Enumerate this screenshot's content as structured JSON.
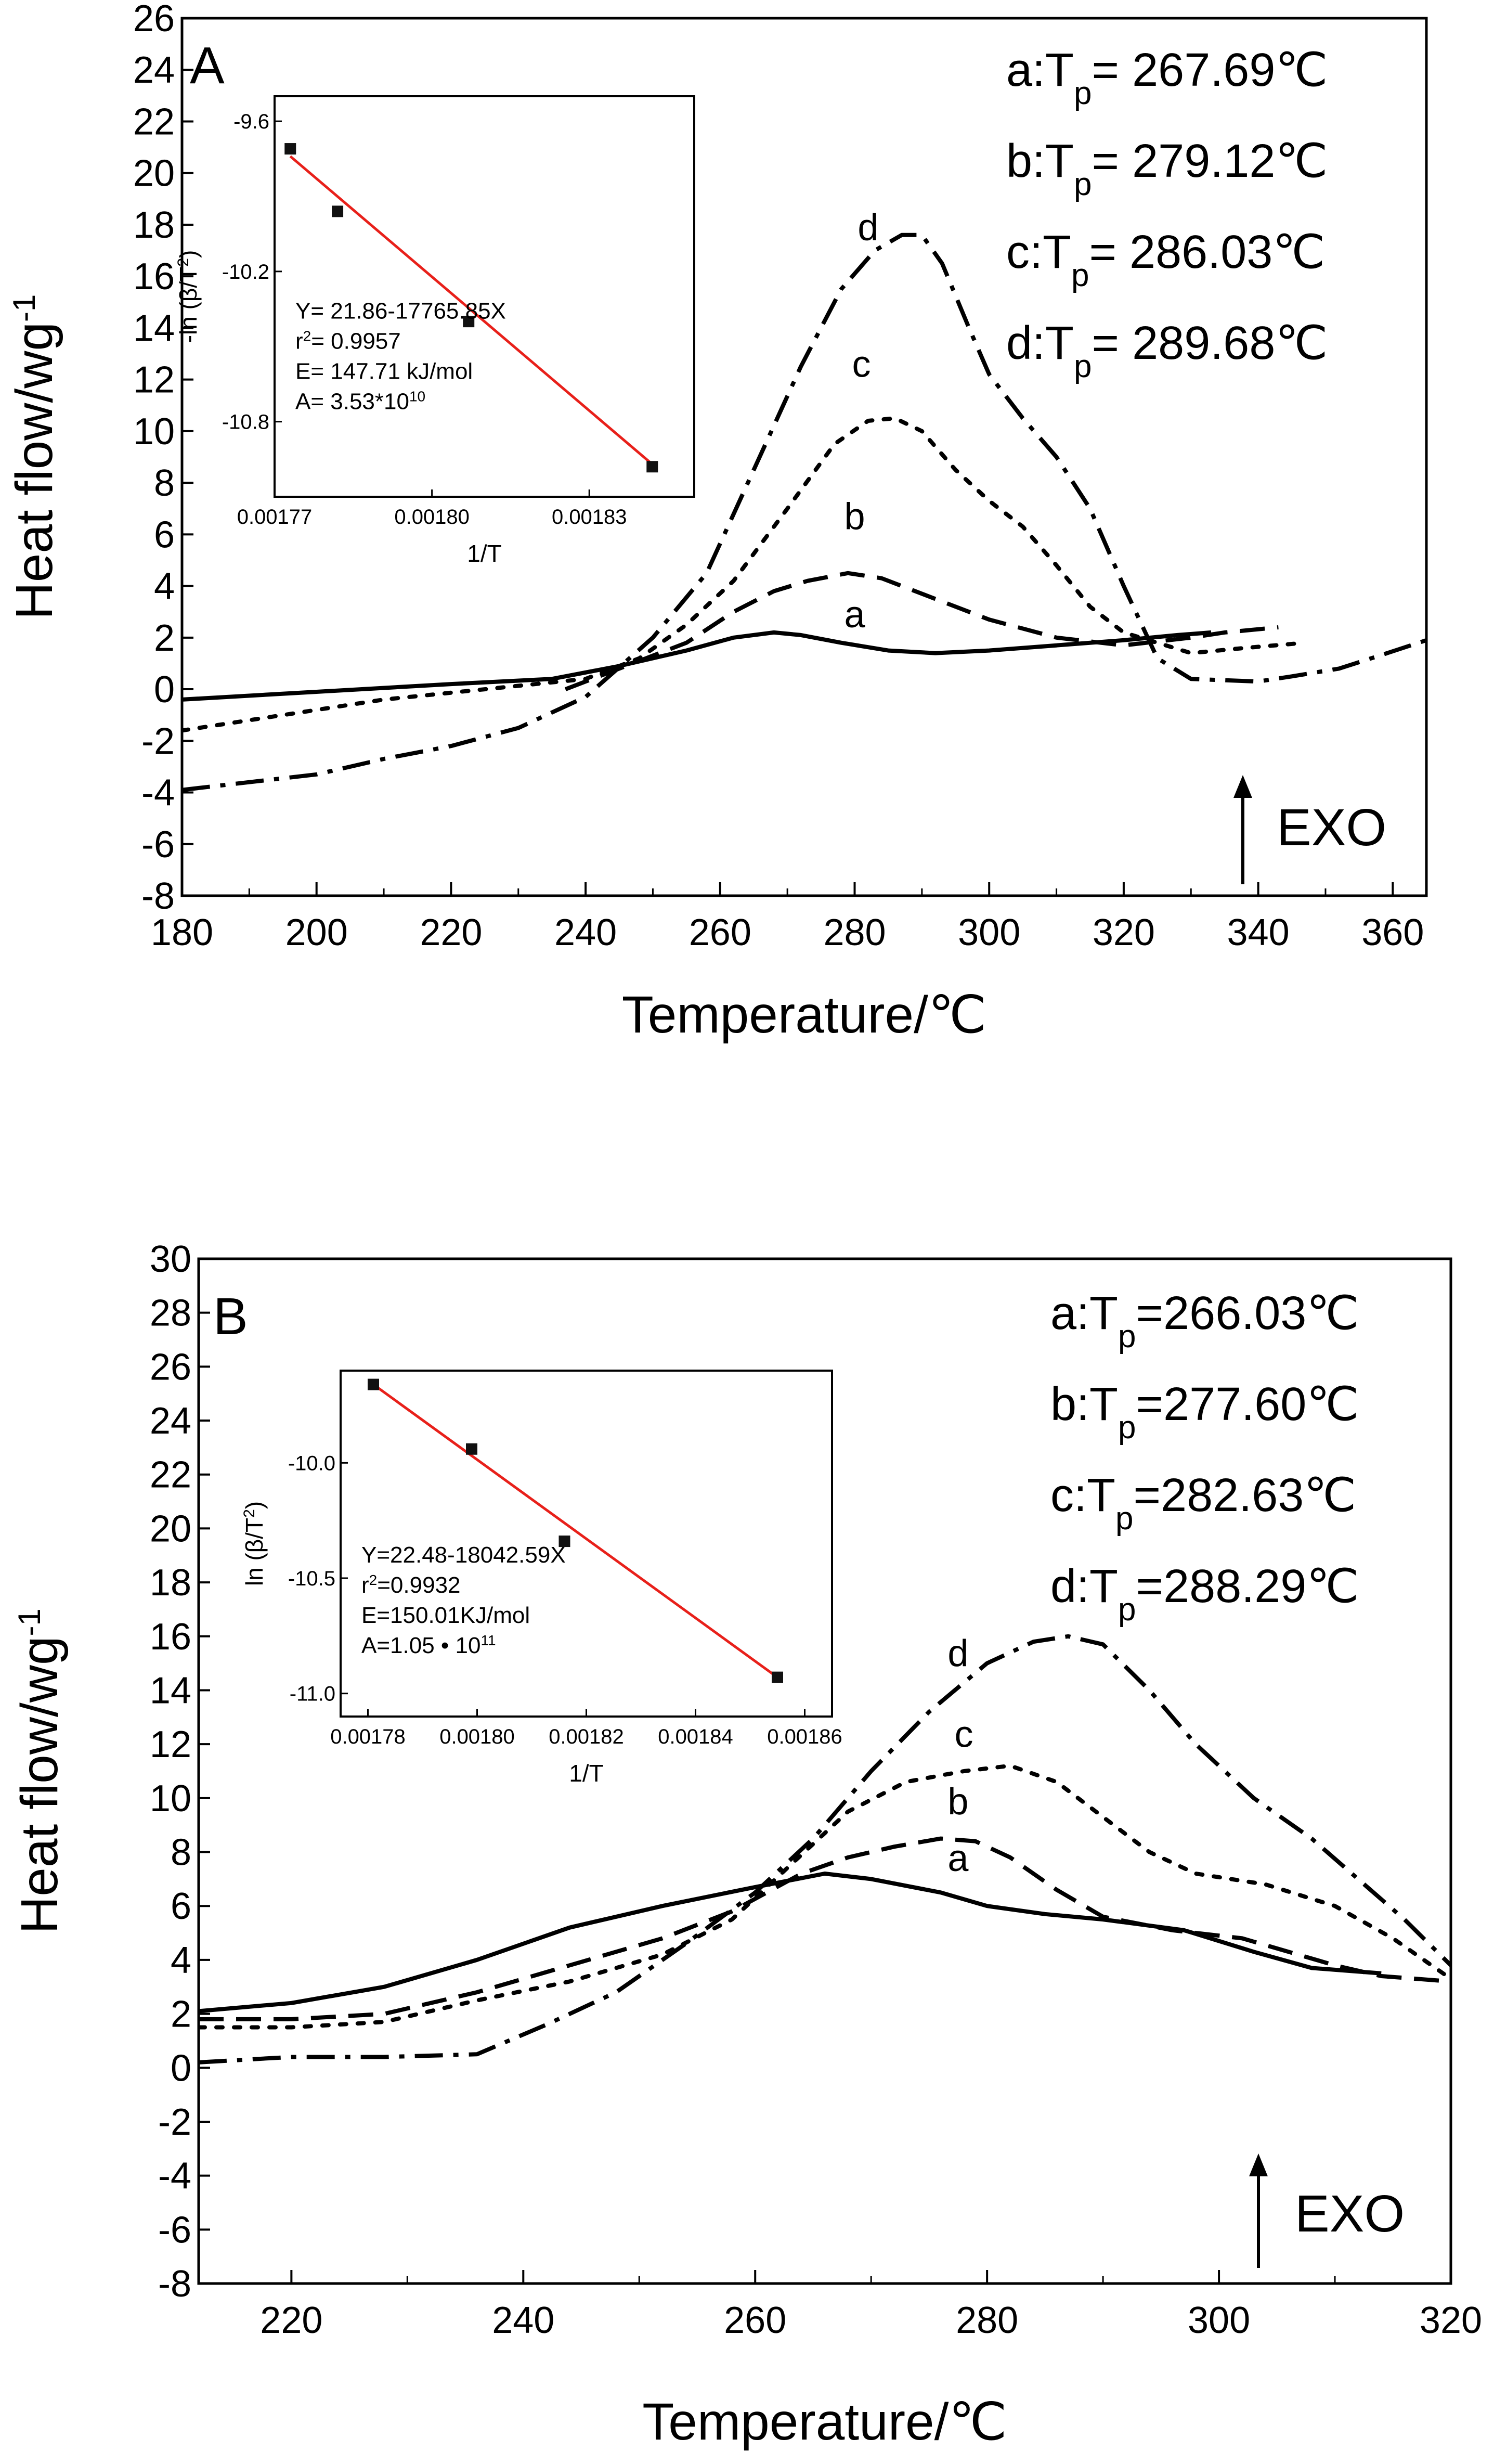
{
  "chart_data": [
    {
      "panel": "A",
      "type": "line",
      "xlabel": "Temperature/℃",
      "ylabel": "Heat flow/wg",
      "ylabel_sup": "-1",
      "xlim": [
        180,
        365
      ],
      "ylim": [
        -8,
        26
      ],
      "x_ticks": [
        "180",
        "200",
        "220",
        "240",
        "260",
        "280",
        "300",
        "320",
        "340",
        "360"
      ],
      "y_ticks": [
        "26",
        "24",
        "22",
        "20",
        "18",
        "16",
        "14",
        "12",
        "10",
        "8",
        "6",
        "4",
        "2",
        "0",
        "-2",
        "-4",
        "-6",
        "-8"
      ],
      "exo_label": "EXO",
      "peak_annotations": [
        {
          "key": "a",
          "prefix": "a:T",
          "sub": "p",
          "value": "= 267.69℃"
        },
        {
          "key": "b",
          "prefix": "b:T",
          "sub": "p",
          "value": "= 279.12℃"
        },
        {
          "key": "c",
          "prefix": "c:T",
          "sub": "p",
          "value": "= 286.03℃"
        },
        {
          "key": "d",
          "prefix": "d:T",
          "sub": "p",
          "value": "= 289.68℃"
        }
      ],
      "series": [
        {
          "name": "a",
          "style": "solid",
          "label_at": [
            280,
            2.4
          ],
          "points": [
            [
              180,
              -0.4
            ],
            [
              200,
              -0.1
            ],
            [
              220,
              0.2
            ],
            [
              235,
              0.4
            ],
            [
              245,
              0.9
            ],
            [
              255,
              1.5
            ],
            [
              262,
              2.0
            ],
            [
              268,
              2.2
            ],
            [
              272,
              2.1
            ],
            [
              278,
              1.8
            ],
            [
              285,
              1.5
            ],
            [
              292,
              1.4
            ],
            [
              300,
              1.5
            ],
            [
              310,
              1.7
            ],
            [
              320,
              1.9
            ],
            [
              328,
              2.1
            ],
            [
              333,
              2.2
            ]
          ]
        },
        {
          "name": "b",
          "style": "dashed",
          "label_at": [
            280,
            6.2
          ],
          "points": [
            [
              237,
              0.0
            ],
            [
              245,
              0.8
            ],
            [
              255,
              1.8
            ],
            [
              262,
              3.0
            ],
            [
              268,
              3.8
            ],
            [
              273,
              4.2
            ],
            [
              279,
              4.5
            ],
            [
              284,
              4.3
            ],
            [
              290,
              3.7
            ],
            [
              300,
              2.7
            ],
            [
              310,
              2.0
            ],
            [
              320,
              1.7
            ],
            [
              330,
              2.0
            ],
            [
              335,
              2.2
            ],
            [
              343,
              2.4
            ]
          ]
        },
        {
          "name": "c",
          "style": "dotted",
          "label_at": [
            281,
            12.1
          ],
          "points": [
            [
              180,
              -1.6
            ],
            [
              195,
              -1.0
            ],
            [
              210,
              -0.4
            ],
            [
              225,
              0.0
            ],
            [
              240,
              0.4
            ],
            [
              248,
              1.2
            ],
            [
              255,
              2.5
            ],
            [
              262,
              4.2
            ],
            [
              270,
              7.0
            ],
            [
              277,
              9.5
            ],
            [
              282,
              10.4
            ],
            [
              286,
              10.5
            ],
            [
              290,
              10.0
            ],
            [
              295,
              8.5
            ],
            [
              300,
              7.3
            ],
            [
              305,
              6.3
            ],
            [
              310,
              4.8
            ],
            [
              315,
              3.2
            ],
            [
              320,
              2.2
            ],
            [
              325,
              1.8
            ],
            [
              330,
              1.4
            ],
            [
              338,
              1.6
            ],
            [
              347,
              1.8
            ]
          ]
        },
        {
          "name": "d",
          "style": "dashdot",
          "label_at": [
            282,
            17.4
          ],
          "points": [
            [
              180,
              -3.9
            ],
            [
              190,
              -3.6
            ],
            [
              200,
              -3.3
            ],
            [
              210,
              -2.7
            ],
            [
              220,
              -2.2
            ],
            [
              230,
              -1.5
            ],
            [
              240,
              -0.3
            ],
            [
              250,
              2.0
            ],
            [
              258,
              4.5
            ],
            [
              265,
              8.5
            ],
            [
              272,
              12.5
            ],
            [
              278,
              15.5
            ],
            [
              283,
              17.0
            ],
            [
              287,
              17.6
            ],
            [
              290,
              17.6
            ],
            [
              293,
              16.5
            ],
            [
              297,
              14.0
            ],
            [
              300,
              12.2
            ],
            [
              305,
              10.5
            ],
            [
              310,
              9.0
            ],
            [
              315,
              7.0
            ],
            [
              320,
              4.0
            ],
            [
              325,
              1.2
            ],
            [
              330,
              0.4
            ],
            [
              340,
              0.3
            ],
            [
              345,
              0.5
            ],
            [
              352,
              0.8
            ],
            [
              358,
              1.3
            ],
            [
              365,
              1.9
            ]
          ]
        }
      ],
      "inset": {
        "type": "scatter",
        "xlabel": "1/T",
        "ylabel": "-ln (β/T",
        "ylabel_sup": "2",
        "ylabel_end": ")",
        "xlim": [
          0.00177,
          0.00185
        ],
        "ylim": [
          -11.1,
          -9.5
        ],
        "x_ticks": [
          "0.00177",
          "0.00180",
          "0.00183"
        ],
        "y_ticks": [
          "-9.6",
          "-10.2",
          "-10.8"
        ],
        "points": [
          [
            0.001773,
            -9.71
          ],
          [
            0.001782,
            -9.96
          ],
          [
            0.001807,
            -10.4
          ],
          [
            0.001842,
            -10.98
          ]
        ],
        "fit": {
          "x0": 0.001773,
          "y0": -9.74,
          "x1": 0.001842,
          "y1": -10.97,
          "color": "#e8201a"
        },
        "equation": "Y= 21.86-17765.85X",
        "r2_prefix": "r",
        "r2_sup": "2",
        "r2_value": "= 0.9957",
        "energy": "E= 147.71 kJ/mol",
        "prefactor": "A= 3.53*10",
        "prefactor_exp": "10"
      }
    },
    {
      "panel": "B",
      "type": "line",
      "xlabel": "Temperature/℃",
      "ylabel": "Heat flow/wg",
      "ylabel_sup": "-1",
      "xlim": [
        212,
        320
      ],
      "ylim": [
        -8,
        30
      ],
      "x_ticks": [
        "220",
        "240",
        "260",
        "280",
        "300",
        "320"
      ],
      "y_ticks": [
        "30",
        "28",
        "26",
        "24",
        "22",
        "20",
        "18",
        "16",
        "14",
        "12",
        "10",
        "8",
        "6",
        "4",
        "2",
        "0",
        "-2",
        "-4",
        "-6",
        "-8"
      ],
      "exo_label": "EXO",
      "peak_annotations": [
        {
          "key": "a",
          "prefix": "a:T",
          "sub": "p",
          "value": "=266.03℃"
        },
        {
          "key": "b",
          "prefix": "b:T",
          "sub": "p",
          "value": "=277.60℃"
        },
        {
          "key": "c",
          "prefix": "c:T",
          "sub": "p",
          "value": "=282.63℃"
        },
        {
          "key": "d",
          "prefix": "d:T",
          "sub": "p",
          "value": "=288.29℃"
        }
      ],
      "series": [
        {
          "name": "a",
          "style": "solid",
          "label_at": [
            277.5,
            7.3
          ],
          "points": [
            [
              212,
              2.1
            ],
            [
              220,
              2.4
            ],
            [
              228,
              3.0
            ],
            [
              236,
              4.0
            ],
            [
              244,
              5.2
            ],
            [
              252,
              6.0
            ],
            [
              260,
              6.7
            ],
            [
              266,
              7.2
            ],
            [
              270,
              7.0
            ],
            [
              276,
              6.5
            ],
            [
              280,
              6.0
            ],
            [
              285,
              5.7
            ],
            [
              290,
              5.5
            ],
            [
              297,
              5.1
            ],
            [
              303,
              4.3
            ],
            [
              308,
              3.7
            ],
            [
              314,
              3.5
            ]
          ]
        },
        {
          "name": "b",
          "style": "dashed",
          "label_at": [
            277.5,
            9.4
          ],
          "points": [
            [
              212,
              1.8
            ],
            [
              220,
              1.8
            ],
            [
              228,
              2.0
            ],
            [
              236,
              2.8
            ],
            [
              244,
              3.8
            ],
            [
              252,
              4.8
            ],
            [
              258,
              5.8
            ],
            [
              264,
              7.2
            ],
            [
              268,
              7.8
            ],
            [
              272,
              8.2
            ],
            [
              276,
              8.5
            ],
            [
              279,
              8.4
            ],
            [
              282,
              7.8
            ],
            [
              286,
              6.6
            ],
            [
              290,
              5.6
            ],
            [
              296,
              5.1
            ],
            [
              302,
              4.8
            ],
            [
              306,
              4.3
            ],
            [
              310,
              3.8
            ],
            [
              314,
              3.4
            ],
            [
              320,
              3.2
            ]
          ]
        },
        {
          "name": "c",
          "style": "dotted",
          "label_at": [
            278,
            11.9
          ],
          "points": [
            [
              212,
              1.5
            ],
            [
              220,
              1.5
            ],
            [
              228,
              1.7
            ],
            [
              236,
              2.5
            ],
            [
              244,
              3.2
            ],
            [
              252,
              4.2
            ],
            [
              258,
              5.5
            ],
            [
              263,
              7.5
            ],
            [
              268,
              9.5
            ],
            [
              273,
              10.6
            ],
            [
              278,
              11.0
            ],
            [
              282,
              11.2
            ],
            [
              286,
              10.6
            ],
            [
              290,
              9.3
            ],
            [
              294,
              8.0
            ],
            [
              298,
              7.2
            ],
            [
              304,
              6.8
            ],
            [
              310,
              6.0
            ],
            [
              315,
              4.8
            ],
            [
              320,
              3.3
            ]
          ]
        },
        {
          "name": "d",
          "style": "dashdot",
          "label_at": [
            277.5,
            14.9
          ],
          "points": [
            [
              212,
              0.2
            ],
            [
              220,
              0.4
            ],
            [
              228,
              0.4
            ],
            [
              236,
              0.5
            ],
            [
              242,
              1.6
            ],
            [
              248,
              2.8
            ],
            [
              254,
              4.6
            ],
            [
              260,
              6.5
            ],
            [
              265,
              8.5
            ],
            [
              270,
              11.0
            ],
            [
              275,
              13.2
            ],
            [
              280,
              15.0
            ],
            [
              284,
              15.8
            ],
            [
              287,
              16.0
            ],
            [
              290,
              15.7
            ],
            [
              294,
              14.0
            ],
            [
              298,
              12.0
            ],
            [
              303,
              10.0
            ],
            [
              308,
              8.5
            ],
            [
              312,
              7.0
            ],
            [
              316,
              5.5
            ],
            [
              320,
              3.8
            ]
          ]
        }
      ],
      "inset": {
        "type": "scatter",
        "xlabel": "1/T",
        "ylabel": "ln (β/T",
        "ylabel_sup": "2",
        "ylabel_end": ")",
        "xlim": [
          0.001775,
          0.001865
        ],
        "ylim": [
          -11.1,
          -9.6
        ],
        "x_ticks": [
          "0.00178",
          "0.00180",
          "0.00182",
          "0.00184",
          "0.00186"
        ],
        "y_ticks": [
          "-10.0",
          "-10.5",
          "-11.0"
        ],
        "points": [
          [
            0.001781,
            -9.66
          ],
          [
            0.001799,
            -9.94
          ],
          [
            0.001816,
            -10.34
          ],
          [
            0.001855,
            -10.93
          ]
        ],
        "fit": {
          "x0": 0.001781,
          "y0": -9.66,
          "x1": 0.001855,
          "y1": -10.93,
          "color": "#e8201a"
        },
        "equation": "Y=22.48-18042.59X",
        "r2_prefix": "r",
        "r2_sup": "2",
        "r2_value": "=0.9932",
        "energy": "E=150.01KJ/mol",
        "prefactor": "A=1.05 • 10",
        "prefactor_exp": "11"
      }
    }
  ]
}
